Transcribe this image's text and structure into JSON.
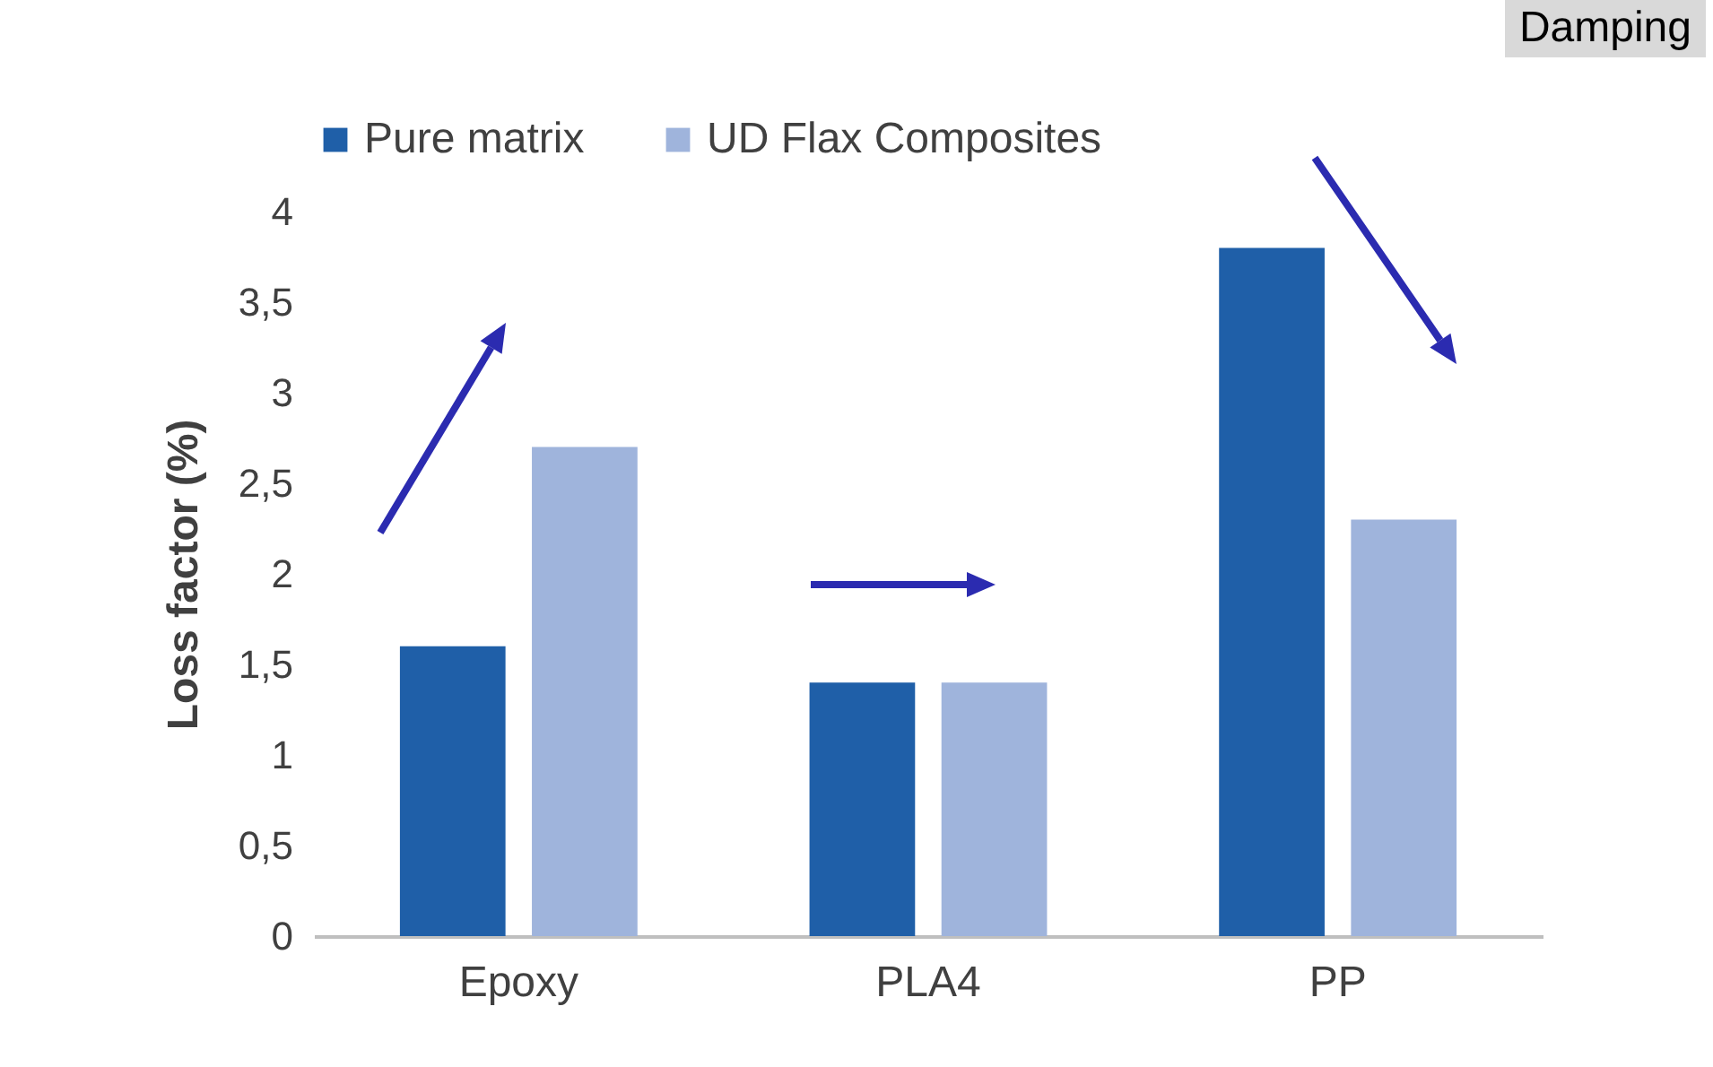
{
  "chart_data": {
    "type": "bar",
    "ylabel": "Loss factor (%)",
    "categories": [
      "Epoxy",
      "PLA4",
      "PP"
    ],
    "series": [
      {
        "name": "Pure matrix",
        "color": "#1f5fa8",
        "values": [
          1.6,
          1.4,
          3.8
        ]
      },
      {
        "name": "UD Flax Composites",
        "color": "#9fb4dc",
        "values": [
          2.7,
          1.4,
          2.3
        ]
      }
    ],
    "ylim": [
      0,
      4
    ],
    "yticks": [
      0,
      {
        "value": 0.5,
        "label": "0,5"
      },
      1,
      {
        "value": 1.5,
        "label": "1,5"
      },
      2,
      {
        "value": 2.5,
        "label": "2,5"
      },
      3,
      {
        "value": 3.5,
        "label": "3,5"
      },
      4
    ],
    "legend": "top",
    "grid": false,
    "annotations": [
      "Damping"
    ]
  }
}
